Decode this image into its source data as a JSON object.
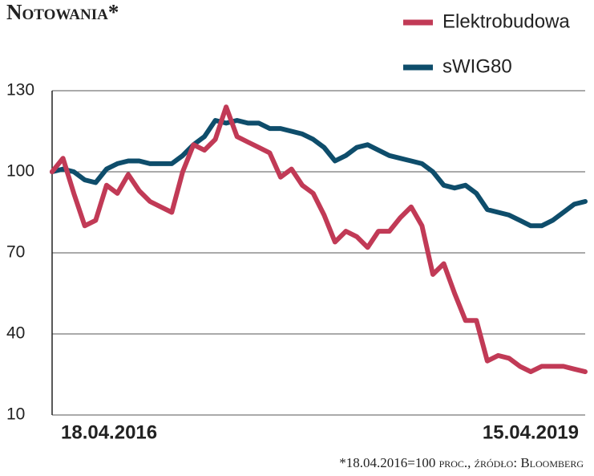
{
  "chart_data": {
    "type": "line",
    "title": "Notowania*",
    "note": "*18.04.2016=100 proc., źródło: Bloomberg",
    "categories": [
      "18.04.2016",
      null,
      null,
      null,
      null,
      null,
      null,
      null,
      null,
      null,
      null,
      null,
      null,
      null,
      null,
      null,
      null,
      null,
      null,
      null,
      null,
      null,
      null,
      null,
      null,
      null,
      null,
      null,
      null,
      null,
      null,
      null,
      null,
      null,
      null,
      null,
      null,
      null,
      null,
      null,
      null,
      null,
      null,
      null,
      null,
      null,
      null,
      null,
      null,
      "15.04.2019"
    ],
    "series": [
      {
        "name": "Elektrobudowa",
        "color": "#c13a56",
        "values": [
          100,
          105,
          92,
          80,
          82,
          95,
          92,
          99,
          93,
          89,
          87,
          85,
          100,
          110,
          108,
          112,
          124,
          113,
          111,
          109,
          107,
          98,
          101,
          95,
          92,
          84,
          74,
          78,
          76,
          72,
          78,
          78,
          83,
          87,
          80,
          62,
          66,
          55,
          45,
          45,
          30,
          32,
          31,
          28,
          26,
          28,
          28,
          28,
          27,
          26
        ]
      },
      {
        "name": "sWIG80",
        "color": "#0e4d6b",
        "values": [
          100,
          101,
          100,
          97,
          96,
          101,
          103,
          104,
          104,
          103,
          103,
          103,
          106,
          110,
          113,
          119,
          118,
          119,
          118,
          118,
          116,
          116,
          115,
          114,
          112,
          109,
          104,
          106,
          109,
          110,
          108,
          106,
          105,
          104,
          103,
          100,
          95,
          94,
          95,
          92,
          86,
          85,
          84,
          82,
          80,
          80,
          82,
          85,
          88,
          89
        ]
      }
    ],
    "ylim": [
      10,
      130
    ],
    "yticks": [
      10,
      40,
      70,
      100,
      130
    ],
    "grid": true
  }
}
